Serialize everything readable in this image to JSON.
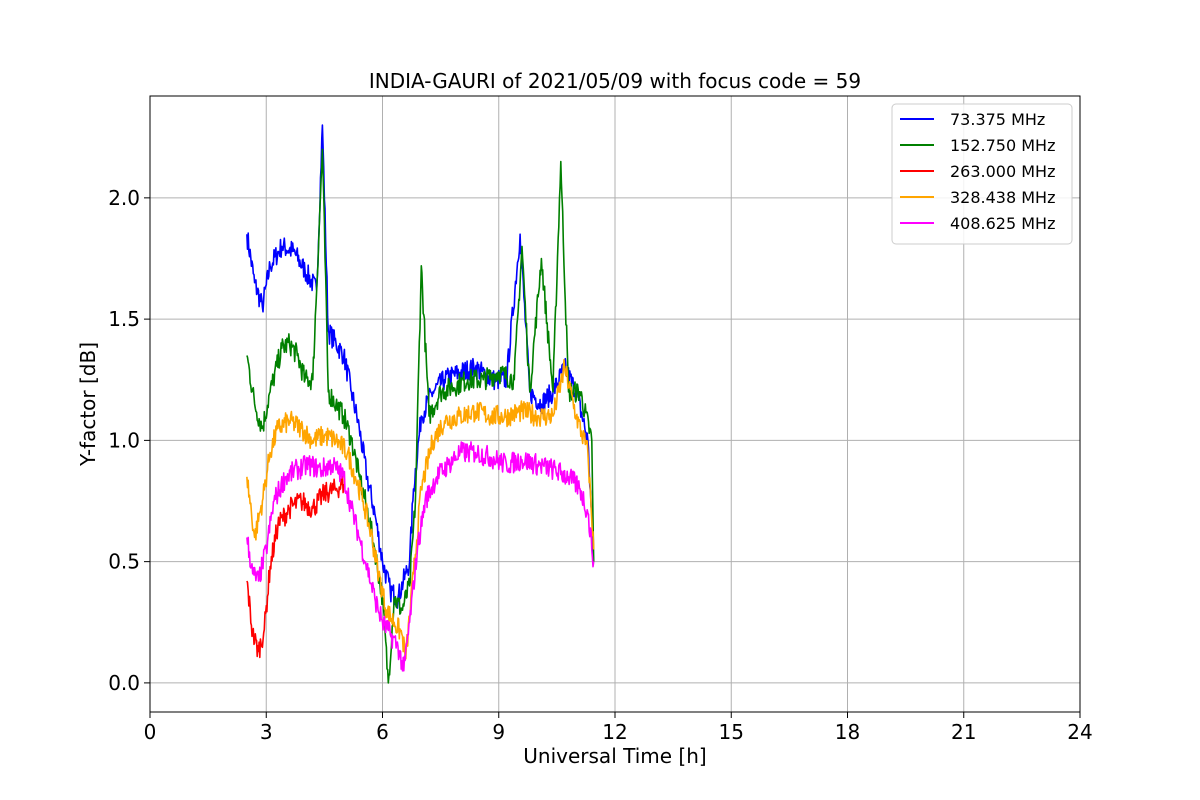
{
  "chart_data": {
    "type": "line",
    "title": "INDIA-GAURI of 2021/05/09 with focus code = 59",
    "xlabel": "Universal Time [h]",
    "ylabel": "Y-factor [dB]",
    "xlim": [
      0,
      24
    ],
    "ylim": [
      -0.12,
      2.42
    ],
    "xticks": [
      0,
      3,
      6,
      9,
      12,
      15,
      18,
      21,
      24
    ],
    "xtick_labels": [
      "0",
      "3",
      "6",
      "9",
      "12",
      "15",
      "18",
      "21",
      "24"
    ],
    "yticks": [
      0.0,
      0.5,
      1.0,
      1.5,
      2.0
    ],
    "ytick_labels": [
      "0.0",
      "0.5",
      "1.0",
      "1.5",
      "2.0"
    ],
    "grid": true,
    "legend_position": "top-right",
    "series": [
      {
        "name": " 73.375 MHz",
        "color": "#0000ff",
        "x": [
          2.5,
          2.7,
          2.9,
          3.1,
          3.4,
          3.7,
          4.0,
          4.3,
          4.45,
          4.6,
          4.8,
          5.0,
          5.2,
          5.4,
          5.6,
          5.8,
          6.0,
          6.2,
          6.4,
          6.6,
          6.7,
          6.8,
          7.0,
          7.3,
          7.6,
          8.0,
          8.4,
          8.8,
          9.2,
          9.55,
          9.8,
          10.1,
          10.4,
          10.7,
          11.0,
          11.3,
          11.45
        ],
        "y": [
          1.85,
          1.65,
          1.55,
          1.72,
          1.8,
          1.78,
          1.7,
          1.62,
          2.3,
          1.45,
          1.4,
          1.35,
          1.2,
          1.05,
          0.85,
          0.7,
          0.5,
          0.38,
          0.35,
          0.45,
          0.5,
          0.8,
          1.1,
          1.2,
          1.25,
          1.28,
          1.3,
          1.25,
          1.25,
          1.85,
          1.2,
          1.15,
          1.2,
          1.3,
          1.2,
          1.0,
          0.5
        ]
      },
      {
        "name": "152.750 MHz",
        "color": "#008000",
        "x": [
          2.5,
          2.7,
          2.9,
          3.1,
          3.4,
          3.6,
          3.8,
          4.0,
          4.2,
          4.45,
          4.6,
          4.8,
          5.0,
          5.2,
          5.4,
          5.6,
          5.8,
          6.0,
          6.15,
          6.3,
          6.5,
          6.7,
          6.85,
          7.0,
          7.2,
          7.5,
          7.8,
          8.2,
          8.6,
          9.0,
          9.4,
          9.6,
          9.8,
          10.1,
          10.4,
          10.6,
          10.8,
          11.1,
          11.4,
          11.45
        ],
        "y": [
          1.35,
          1.15,
          1.05,
          1.2,
          1.38,
          1.4,
          1.35,
          1.25,
          1.25,
          2.2,
          1.2,
          1.15,
          1.1,
          1.0,
          0.85,
          0.72,
          0.55,
          0.35,
          0.0,
          0.35,
          0.3,
          0.4,
          0.75,
          1.72,
          1.1,
          1.2,
          1.22,
          1.25,
          1.25,
          1.28,
          1.25,
          1.8,
          1.2,
          1.75,
          1.2,
          2.15,
          1.2,
          1.2,
          1.0,
          0.5
        ]
      },
      {
        "name": "263.000 MHz",
        "color": "#ff0000",
        "x": [
          2.5,
          2.65,
          2.8,
          2.95,
          3.1,
          3.3,
          3.6,
          3.9,
          4.2,
          4.5,
          4.8,
          5.0
        ],
        "y": [
          0.42,
          0.2,
          0.13,
          0.22,
          0.48,
          0.65,
          0.72,
          0.75,
          0.72,
          0.78,
          0.8,
          0.82
        ]
      },
      {
        "name": "328.438 MHz",
        "color": "#ffa500",
        "x": [
          2.5,
          2.7,
          2.9,
          3.1,
          3.3,
          3.6,
          3.9,
          4.2,
          4.5,
          4.8,
          5.1,
          5.3,
          5.5,
          5.7,
          5.9,
          6.1,
          6.3,
          6.5,
          6.6,
          6.8,
          7.0,
          7.3,
          7.6,
          8.0,
          8.4,
          8.8,
          9.2,
          9.6,
          10.0,
          10.4,
          10.7,
          11.0,
          11.3,
          11.45
        ],
        "y": [
          0.85,
          0.6,
          0.75,
          0.95,
          1.05,
          1.08,
          1.05,
          1.0,
          1.02,
          1.0,
          0.95,
          0.85,
          0.75,
          0.62,
          0.45,
          0.3,
          0.25,
          0.2,
          0.1,
          0.45,
          0.8,
          1.0,
          1.08,
          1.1,
          1.12,
          1.1,
          1.1,
          1.12,
          1.1,
          1.1,
          1.3,
          1.1,
          0.95,
          0.55
        ]
      },
      {
        "name": "408.625 MHz",
        "color": "#ff00ff",
        "x": [
          2.5,
          2.65,
          2.8,
          3.0,
          3.2,
          3.5,
          3.8,
          4.1,
          4.4,
          4.7,
          5.0,
          5.2,
          5.4,
          5.6,
          5.8,
          6.0,
          6.2,
          6.4,
          6.55,
          6.7,
          6.9,
          7.1,
          7.4,
          7.7,
          8.0,
          8.4,
          8.8,
          9.2,
          9.6,
          10.0,
          10.4,
          10.8,
          11.1,
          11.3,
          11.45
        ],
        "y": [
          0.6,
          0.45,
          0.42,
          0.55,
          0.75,
          0.85,
          0.88,
          0.9,
          0.88,
          0.9,
          0.85,
          0.72,
          0.6,
          0.48,
          0.35,
          0.25,
          0.2,
          0.15,
          0.05,
          0.25,
          0.55,
          0.75,
          0.85,
          0.9,
          0.95,
          0.95,
          0.93,
          0.9,
          0.92,
          0.9,
          0.88,
          0.85,
          0.8,
          0.7,
          0.5
        ]
      }
    ]
  }
}
